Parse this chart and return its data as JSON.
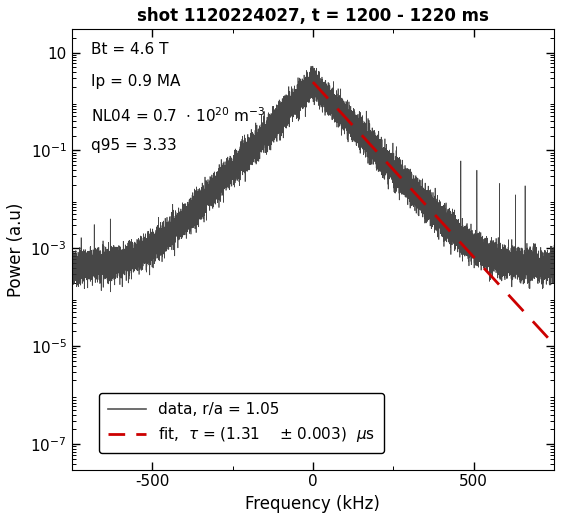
{
  "title": "shot 1120224027, t = 1200 - 1220 ms",
  "xlabel": "Frequency (kHz)",
  "ylabel": "Power (a.u)",
  "xlim": [
    -750,
    750
  ],
  "ymin": 3e-08,
  "ymax": 30,
  "annotations_line1": "Bt = 4.6 T",
  "annotations_line2": "Ip = 0.9 MA",
  "annotations_line3": "NL04 = 0.7  · 10",
  "annotations_line3_sup": "20",
  "annotations_line3_rest": " m",
  "annotations_line3_sup2": "-3",
  "annotations_line4": "q95 = 3.33",
  "noise_floor": 0.0004,
  "peak_value": 2.5,
  "tau_us": 1.31,
  "tau_err": 0.003,
  "r_over_a": 1.05,
  "fit_color": "#cc0000",
  "data_color": "#333333",
  "background_color": "#ffffff",
  "title_fontsize": 12,
  "label_fontsize": 12,
  "annot_fontsize": 11,
  "legend_fontsize": 11
}
